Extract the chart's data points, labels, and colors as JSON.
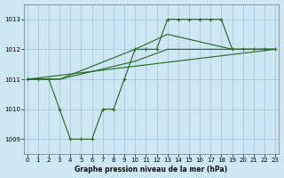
{
  "background_color": "#cde8f2",
  "grid_color": "#a0c8d8",
  "line_color": "#2d6b2d",
  "xlabel": "Graphe pression niveau de la mer (hPa)",
  "xlim": [
    -0.3,
    23.3
  ],
  "ylim": [
    1008.5,
    1013.5
  ],
  "yticks": [
    1009,
    1010,
    1011,
    1012,
    1013
  ],
  "xticks": [
    0,
    1,
    2,
    3,
    4,
    5,
    6,
    7,
    8,
    9,
    10,
    11,
    12,
    13,
    14,
    15,
    16,
    17,
    18,
    19,
    20,
    21,
    22,
    23
  ],
  "series_main": {
    "x": [
      0,
      1,
      2,
      3,
      4,
      5,
      6,
      7,
      8,
      9,
      10,
      11,
      12,
      13,
      14,
      15,
      16,
      17,
      18,
      19,
      20,
      21,
      22,
      23
    ],
    "y": [
      1011,
      1011,
      1011,
      1010,
      1009,
      1009,
      1009,
      1010,
      1010,
      1011,
      1012,
      1012,
      1012,
      1013,
      1013,
      1013,
      1013,
      1013,
      1013,
      1012,
      1012,
      1012,
      1012,
      1012
    ],
    "has_markers": true
  },
  "series_diag_low": {
    "x": [
      0,
      23
    ],
    "y": [
      1011,
      1012
    ],
    "has_markers": false
  },
  "series_mid": {
    "x": [
      0,
      3,
      10,
      13,
      19,
      23
    ],
    "y": [
      1011,
      1011,
      1011.6,
      1012,
      1012,
      1012
    ],
    "has_markers": false
  },
  "series_upper": {
    "x": [
      0,
      3,
      10,
      13,
      19,
      23
    ],
    "y": [
      1011,
      1011,
      1012,
      1012.5,
      1012,
      1012
    ],
    "has_markers": false
  }
}
